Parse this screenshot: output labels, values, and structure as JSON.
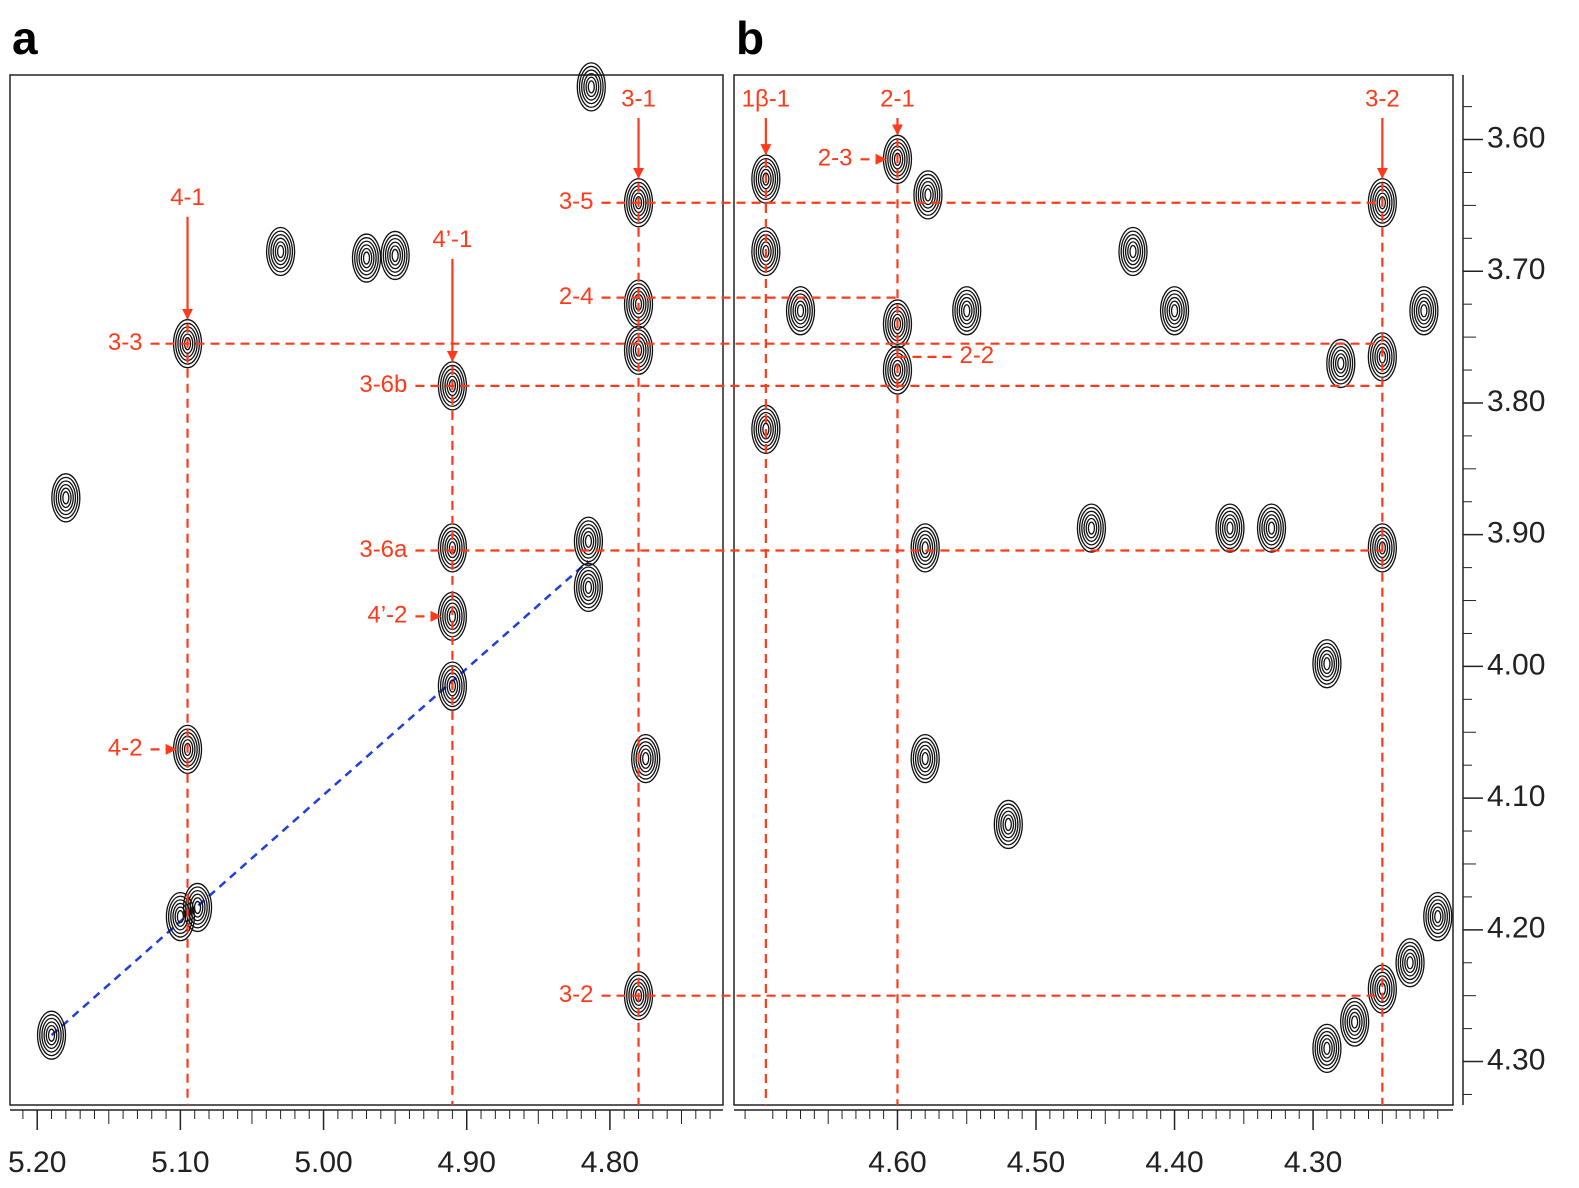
{
  "chart_data": {
    "type": "scatter",
    "ylim": [
      3.551,
      4.333
    ],
    "yticks": [
      {
        "value": 3.6,
        "label": "3.60"
      },
      {
        "value": 3.7,
        "label": "3.70"
      },
      {
        "value": 3.8,
        "label": "3.80"
      },
      {
        "value": 3.9,
        "label": "3.90"
      },
      {
        "value": 4.0,
        "label": "4.00"
      },
      {
        "value": 4.1,
        "label": "4.10"
      },
      {
        "value": 4.2,
        "label": "4.20"
      },
      {
        "value": 4.3,
        "label": "4.30"
      }
    ],
    "color": "#111111",
    "annotation_color": "#ff3a1a",
    "panels": [
      {
        "label": "a",
        "xlim": [
          5.219,
          4.721
        ],
        "xticks": [
          {
            "value": 5.2,
            "label": "5.20"
          },
          {
            "value": 5.1,
            "label": "5.10"
          },
          {
            "value": 5.0,
            "label": "5.00"
          },
          {
            "value": 4.9,
            "label": "4.90"
          },
          {
            "value": 4.8,
            "label": "4.80"
          }
        ],
        "peaks": {
          "x": [
            5.095,
            4.91,
            4.91,
            4.91,
            4.91,
            5.095,
            5.1,
            5.088,
            5.19,
            4.78,
            4.78,
            4.78,
            4.78,
            5.18,
            4.815,
            4.815,
            4.97,
            5.03,
            4.95,
            4.813,
            4.775
          ],
          "y": [
            3.755,
            3.787,
            3.91,
            3.962,
            4.015,
            4.063,
            4.19,
            4.183,
            4.28,
            3.648,
            3.725,
            3.76,
            4.25,
            3.872,
            3.905,
            3.94,
            3.69,
            3.685,
            3.688,
            3.56,
            4.07
          ]
        },
        "diagonal": {
          "x": [
            5.19,
            4.815
          ],
          "y": [
            4.28,
            3.92
          ],
          "color": "#1f3fe0"
        },
        "annotations": [
          {
            "text": "4-1",
            "x": 5.095,
            "y": 3.755,
            "style": "arrow"
          },
          {
            "text": "4’-1",
            "x": 4.91,
            "y": 3.787,
            "style": "arrow"
          },
          {
            "text": "3-1",
            "x": 4.78,
            "y": 3.648,
            "style": "arrow"
          },
          {
            "text": "3-3",
            "x": 5.095,
            "y": 3.755,
            "style": "row",
            "to": 4.25
          },
          {
            "text": "3-5",
            "x": 4.78,
            "y": 3.648,
            "style": "row",
            "to": 4.25
          },
          {
            "text": "2-4",
            "x": 4.78,
            "y": 3.72,
            "style": "row",
            "to": 4.6
          },
          {
            "text": "3-6b",
            "x": 4.91,
            "y": 3.787,
            "style": "row",
            "to": 4.25
          },
          {
            "text": "3-6a",
            "x": 4.91,
            "y": 3.912,
            "style": "row",
            "to": 4.25
          },
          {
            "text": "4’-2",
            "x": 4.91,
            "y": 3.962,
            "style": "row"
          },
          {
            "text": "4-2",
            "x": 5.095,
            "y": 4.063,
            "style": "row"
          },
          {
            "text": "3-2",
            "x": 4.78,
            "y": 4.25,
            "style": "row",
            "to": 4.25
          }
        ]
      },
      {
        "label": "b",
        "xlim": [
          4.718,
          4.199
        ],
        "xticks": [
          {
            "value": 4.6,
            "label": "4.60"
          },
          {
            "value": 4.5,
            "label": "4.50"
          },
          {
            "value": 4.4,
            "label": "4.40"
          },
          {
            "value": 4.3,
            "label": "4.30"
          }
        ],
        "peaks": {
          "x": [
            4.695,
            4.695,
            4.695,
            4.6,
            4.578,
            4.6,
            4.6,
            4.25,
            4.25,
            4.25,
            4.28,
            4.58,
            4.29,
            4.58,
            4.52,
            4.43,
            4.29,
            4.27,
            4.25,
            4.23,
            4.21,
            4.67,
            4.55,
            4.4,
            4.33,
            4.46,
            4.36,
            4.22
          ],
          "y": [
            3.63,
            3.685,
            3.82,
            3.615,
            3.642,
            3.74,
            3.775,
            3.648,
            3.765,
            3.91,
            3.77,
            3.91,
            3.998,
            4.07,
            4.12,
            3.685,
            4.29,
            4.27,
            4.245,
            4.225,
            4.19,
            3.73,
            3.73,
            3.73,
            3.895,
            3.895,
            3.895,
            3.73
          ]
        },
        "annotations": [
          {
            "text": "1β-1",
            "x": 4.695,
            "y": 3.63,
            "style": "arrow"
          },
          {
            "text": "2-1",
            "x": 4.6,
            "y": 3.615,
            "style": "arrow"
          },
          {
            "text": "3-2",
            "x": 4.25,
            "y": 3.648,
            "style": "arrow"
          },
          {
            "text": "2-3",
            "x": 4.6,
            "y": 3.615,
            "style": "row"
          },
          {
            "text": "2-2",
            "x": 4.6,
            "y": 3.765,
            "style": "row",
            "side": "right"
          }
        ]
      }
    ]
  }
}
